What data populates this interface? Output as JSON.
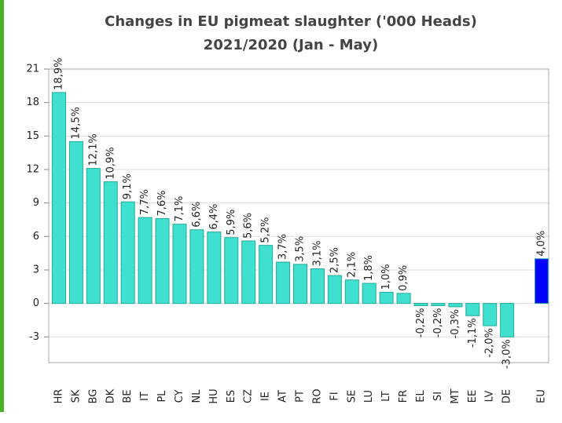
{
  "chart_data": {
    "type": "bar",
    "title": [
      "Changes in EU pigmeat slaughter ('000 Heads)",
      "2021/2020 (Jan - May)"
    ],
    "categories": [
      "HR",
      "SK",
      "BG",
      "DK",
      "BE",
      "IT",
      "PL",
      "CY",
      "NL",
      "HU",
      "ES",
      "CZ",
      "IE",
      "AT",
      "PT",
      "RO",
      "FI",
      "SE",
      "LU",
      "LT",
      "FR",
      "EL",
      "SI",
      "MT",
      "EE",
      "LV",
      "DE",
      null,
      "EU"
    ],
    "values": [
      18.9,
      14.5,
      12.1,
      10.9,
      9.1,
      7.7,
      7.6,
      7.1,
      6.6,
      6.4,
      5.9,
      5.6,
      5.2,
      3.7,
      3.5,
      3.1,
      2.5,
      2.1,
      1.8,
      1.0,
      0.9,
      -0.2,
      -0.2,
      -0.3,
      -1.1,
      -2.0,
      -3.0,
      null,
      4.0
    ],
    "value_labels": [
      "18,9%",
      "14,5%",
      "12,1%",
      "10,9%",
      "9,1%",
      "7,7%",
      "7,6%",
      "7,1%",
      "6,6%",
      "6,4%",
      "5,9%",
      "5,6%",
      "5,2%",
      "3,7%",
      "3,5%",
      "3,1%",
      "2,5%",
      "2,1%",
      "1,8%",
      "1,0%",
      "0,9%",
      "-0,2%",
      "-0,2%",
      "-0,3%",
      "-1,1%",
      "-2,0%",
      "-3,0%",
      null,
      "4,0%"
    ],
    "colors": [
      "#40e0d0",
      "#40e0d0",
      "#40e0d0",
      "#40e0d0",
      "#40e0d0",
      "#40e0d0",
      "#40e0d0",
      "#40e0d0",
      "#40e0d0",
      "#40e0d0",
      "#40e0d0",
      "#40e0d0",
      "#40e0d0",
      "#40e0d0",
      "#40e0d0",
      "#40e0d0",
      "#40e0d0",
      "#40e0d0",
      "#40e0d0",
      "#40e0d0",
      "#40e0d0",
      "#40e0d0",
      "#40e0d0",
      "#40e0d0",
      "#40e0d0",
      "#40e0d0",
      "#40e0d0",
      null,
      "#0000ff"
    ],
    "ylim": [
      -5.3,
      21
    ],
    "yticks": [
      -3,
      0,
      3,
      6,
      9,
      12,
      15,
      18,
      21
    ],
    "grid": true
  }
}
